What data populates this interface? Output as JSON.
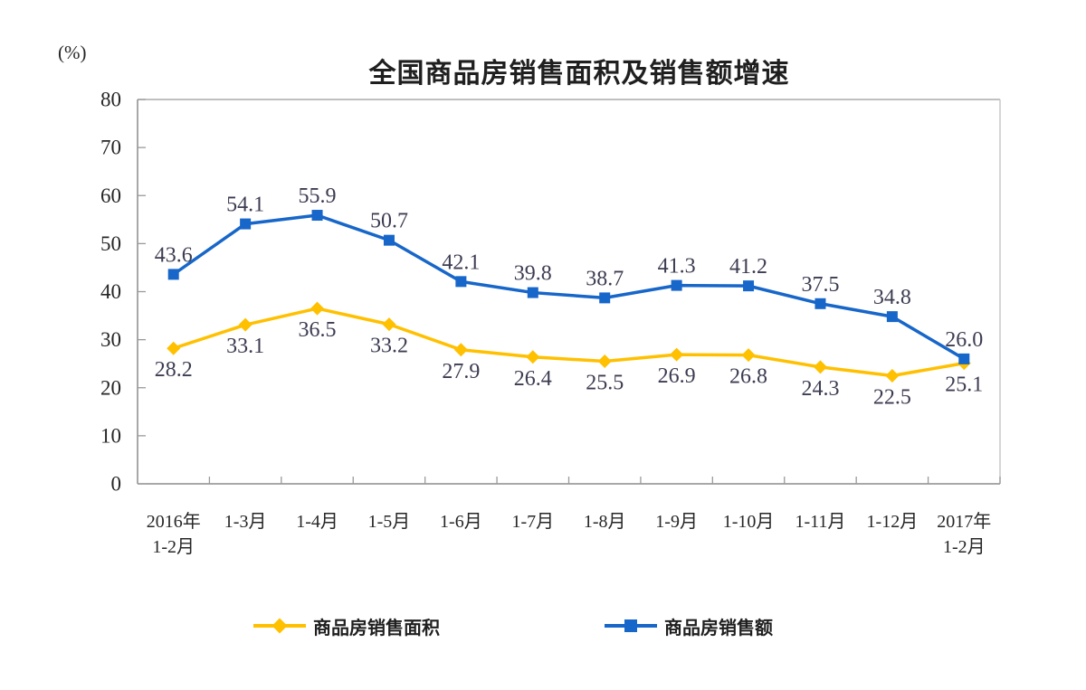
{
  "chart_data": {
    "type": "line",
    "title": "全国商品房销售面积及销售额增速",
    "ylabel": "(%)",
    "xlabel": "",
    "ylim": [
      0,
      80
    ],
    "ytick_step": 10,
    "grid": false,
    "legend_position": "bottom",
    "label_color": "#3c3c52",
    "axis_tick_color": "#262626",
    "categories": [
      "2016年\n1-2月",
      "1-3月",
      "1-4月",
      "1-5月",
      "1-6月",
      "1-7月",
      "1-8月",
      "1-9月",
      "1-10月",
      "1-11月",
      "1-12月",
      "2017年\n1-2月"
    ],
    "series": [
      {
        "name": "商品房销售面积",
        "color": "#FFC000",
        "marker": "diamond",
        "label_position": "below",
        "values": [
          28.2,
          33.1,
          36.5,
          33.2,
          27.9,
          26.4,
          25.5,
          26.9,
          26.8,
          24.3,
          22.5,
          25.1
        ]
      },
      {
        "name": "商品房销售额",
        "color": "#1766C9",
        "marker": "square",
        "label_position": "above",
        "values": [
          43.6,
          54.1,
          55.9,
          50.7,
          42.1,
          39.8,
          38.7,
          41.3,
          41.2,
          37.5,
          34.8,
          26.0
        ]
      }
    ]
  }
}
